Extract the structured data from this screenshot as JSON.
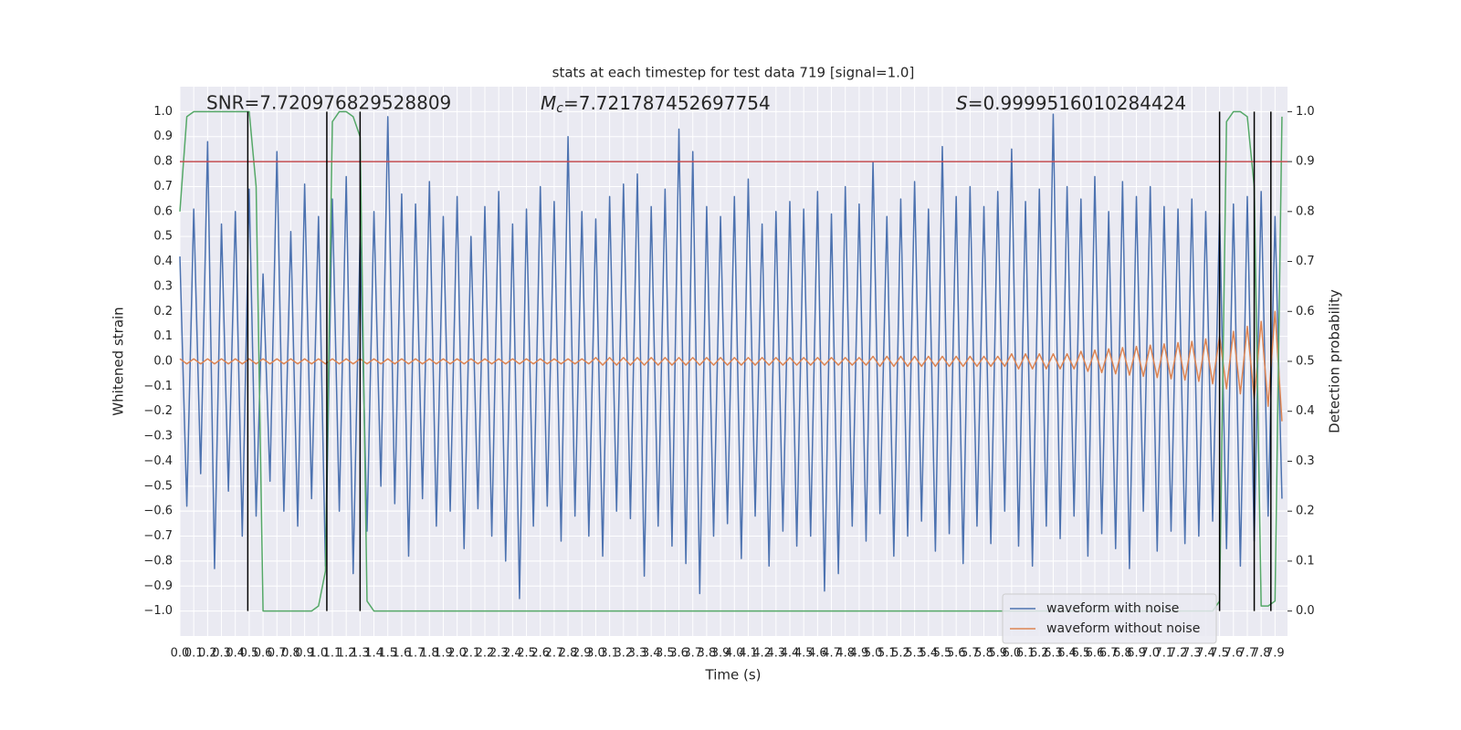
{
  "chart_data": {
    "type": "line",
    "title": "stats at each timestep for test data 719 [signal=1.0]",
    "xlabel": "Time (s)",
    "ylabel": "Whitened strain",
    "y2label": "Detection probability",
    "annotations": [
      "SNR=7.720976829528809",
      {
        "symbol": "M",
        "subscript": "c",
        "text": "=7.721787452697754"
      },
      {
        "symbol": "S",
        "text": "=0.9999516010284424"
      }
    ],
    "xlim": [
      0,
      7.99
    ],
    "ylim": [
      -1.1,
      1.1
    ],
    "y2lim": [
      -0.05,
      1.05
    ],
    "grid": true,
    "legend": "lower right",
    "hline": 0.8,
    "hline_color": "#c44e52",
    "vlines": [
      0.49,
      1.06,
      1.3,
      7.5,
      7.75,
      7.87
    ],
    "vline_span": [
      -1,
      1
    ],
    "vline_color": "#000000",
    "xticks": [
      {
        "value": 0,
        "label": "0.0"
      },
      0.1,
      0.2,
      0.3,
      0.4,
      0.5,
      0.6,
      0.7,
      0.8,
      0.9,
      {
        "value": 1,
        "label": "1.0"
      },
      1.1,
      1.2,
      1.3,
      1.4,
      1.5,
      1.6,
      1.7,
      1.8,
      1.9,
      {
        "value": 2,
        "label": "2.0"
      },
      2.1,
      2.2,
      2.3,
      2.4,
      2.5,
      2.6,
      2.7,
      2.8,
      2.9,
      {
        "value": 3,
        "label": "3.0"
      },
      3.1,
      3.2,
      3.3,
      3.4,
      3.5,
      3.6,
      3.7,
      3.8,
      3.9,
      {
        "value": 4,
        "label": "4.0"
      },
      4.1,
      4.2,
      4.3,
      4.4,
      4.5,
      4.6,
      4.7,
      4.8,
      4.9,
      {
        "value": 5,
        "label": "5.0"
      },
      5.1,
      5.2,
      5.3,
      5.4,
      5.5,
      5.6,
      5.7,
      5.8,
      5.9,
      {
        "value": 6,
        "label": "6.0"
      },
      6.1,
      6.2,
      6.3,
      6.4,
      6.5,
      6.6,
      6.7,
      6.8,
      6.9,
      {
        "value": 7,
        "label": "7.0"
      },
      7.1,
      7.2,
      7.3,
      7.4,
      7.5,
      7.6,
      7.7,
      7.8,
      7.9
    ],
    "yticks": [
      {
        "value": -1,
        "label": "−1.0"
      },
      {
        "value": -0.9,
        "label": "−0.9"
      },
      {
        "value": -0.8,
        "label": "−0.8"
      },
      {
        "value": -0.7,
        "label": "−0.7"
      },
      {
        "value": -0.6,
        "label": "−0.6"
      },
      {
        "value": -0.5,
        "label": "−0.5"
      },
      {
        "value": -0.4,
        "label": "−0.4"
      },
      {
        "value": -0.3,
        "label": "−0.3"
      },
      {
        "value": -0.2,
        "label": "−0.2"
      },
      {
        "value": -0.1,
        "label": "−0.1"
      },
      {
        "value": 0,
        "label": "0.0"
      },
      0.1,
      0.2,
      0.3,
      0.4,
      0.5,
      0.6,
      0.7,
      0.8,
      0.9,
      {
        "value": 1,
        "label": "1.0"
      }
    ],
    "y2ticks": [
      {
        "value": 0,
        "label": "0.0"
      },
      0.1,
      0.2,
      0.3,
      0.4,
      0.5,
      0.6,
      0.7,
      0.8,
      0.9,
      {
        "value": 1,
        "label": "1.0"
      }
    ],
    "x": [
      0,
      0.05,
      0.1,
      0.15,
      0.2,
      0.25,
      0.3,
      0.35,
      0.4,
      0.45,
      0.5,
      0.55,
      0.6,
      0.65,
      0.7,
      0.75,
      0.8,
      0.85,
      0.9,
      0.95,
      1,
      1.05,
      1.1,
      1.15,
      1.2,
      1.25,
      1.3,
      1.35,
      1.4,
      1.45,
      1.5,
      1.55,
      1.6,
      1.65,
      1.7,
      1.75,
      1.8,
      1.85,
      1.9,
      1.95,
      2,
      2.05,
      2.1,
      2.15,
      2.2,
      2.25,
      2.3,
      2.35,
      2.4,
      2.45,
      2.5,
      2.55,
      2.6,
      2.65,
      2.7,
      2.75,
      2.8,
      2.85,
      2.9,
      2.95,
      3,
      3.05,
      3.1,
      3.15,
      3.2,
      3.25,
      3.3,
      3.35,
      3.4,
      3.45,
      3.5,
      3.55,
      3.6,
      3.65,
      3.7,
      3.75,
      3.8,
      3.85,
      3.9,
      3.95,
      4,
      4.05,
      4.1,
      4.15,
      4.2,
      4.25,
      4.3,
      4.35,
      4.4,
      4.45,
      4.5,
      4.55,
      4.6,
      4.65,
      4.7,
      4.75,
      4.8,
      4.85,
      4.9,
      4.95,
      5,
      5.05,
      5.1,
      5.15,
      5.2,
      5.25,
      5.3,
      5.35,
      5.4,
      5.45,
      5.5,
      5.55,
      5.6,
      5.65,
      5.7,
      5.75,
      5.8,
      5.85,
      5.9,
      5.95,
      6,
      6.05,
      6.1,
      6.15,
      6.2,
      6.25,
      6.3,
      6.35,
      6.4,
      6.45,
      6.5,
      6.55,
      6.6,
      6.65,
      6.7,
      6.75,
      6.8,
      6.85,
      6.9,
      6.95,
      7,
      7.05,
      7.1,
      7.15,
      7.2,
      7.25,
      7.3,
      7.35,
      7.4,
      7.45,
      7.5,
      7.55,
      7.6,
      7.65,
      7.7,
      7.75,
      7.8,
      7.85,
      7.9,
      7.95
    ],
    "series": [
      {
        "name": "waveform with noise",
        "color": "#4c72b0",
        "values": [
          0.42,
          -0.58,
          0.61,
          -0.45,
          0.88,
          -0.83,
          0.55,
          -0.52,
          0.6,
          -0.7,
          0.69,
          -0.62,
          0.35,
          -0.48,
          0.84,
          -0.6,
          0.52,
          -0.66,
          0.71,
          -0.55,
          0.58,
          -0.82,
          0.65,
          -0.6,
          0.74,
          -0.85,
          0.5,
          -0.68,
          0.6,
          -0.5,
          0.98,
          -0.57,
          0.67,
          -0.78,
          0.63,
          -0.55,
          0.72,
          -0.66,
          0.58,
          -0.6,
          0.66,
          -0.75,
          0.5,
          -0.59,
          0.62,
          -0.7,
          0.68,
          -0.8,
          0.55,
          -0.95,
          0.61,
          -0.66,
          0.7,
          -0.58,
          0.64,
          -0.72,
          0.9,
          -0.62,
          0.6,
          -0.7,
          0.57,
          -0.78,
          0.66,
          -0.6,
          0.71,
          -0.63,
          0.75,
          -0.86,
          0.62,
          -0.66,
          0.69,
          -0.74,
          0.93,
          -0.81,
          0.84,
          -0.93,
          0.62,
          -0.7,
          0.58,
          -0.65,
          0.66,
          -0.79,
          0.73,
          -0.62,
          0.55,
          -0.82,
          0.6,
          -0.68,
          0.64,
          -0.74,
          0.61,
          -0.7,
          0.68,
          -0.92,
          0.59,
          -0.85,
          0.7,
          -0.66,
          0.63,
          -0.72,
          0.8,
          -0.61,
          0.58,
          -0.78,
          0.65,
          -0.7,
          0.72,
          -0.64,
          0.61,
          -0.76,
          0.86,
          -0.69,
          0.66,
          -0.81,
          0.7,
          -0.66,
          0.62,
          -0.73,
          0.68,
          -0.6,
          0.85,
          -0.74,
          0.64,
          -0.82,
          0.69,
          -0.66,
          0.99,
          -0.71,
          0.7,
          -0.62,
          0.65,
          -0.78,
          0.74,
          -0.69,
          0.6,
          -0.75,
          0.72,
          -0.83,
          0.66,
          -0.6,
          0.7,
          -0.76,
          0.62,
          -0.68,
          0.61,
          -0.73,
          0.65,
          -0.7,
          0.6,
          -0.64,
          0.59,
          -0.75,
          0.63,
          -0.82,
          0.66,
          -0.72,
          0.68,
          -0.62,
          0.58,
          -0.55
        ]
      },
      {
        "name": "waveform without noise",
        "color": "#dd8452",
        "values": [
          0.01,
          -0.01,
          0.01,
          -0.01,
          0.01,
          -0.01,
          0.01,
          -0.01,
          0.01,
          -0.01,
          0.01,
          -0.01,
          0.01,
          -0.01,
          0.01,
          -0.01,
          0.01,
          -0.01,
          0.01,
          -0.01,
          0.01,
          -0.01,
          0.01,
          -0.01,
          0.01,
          -0.01,
          0.01,
          -0.01,
          0.01,
          -0.01,
          0.01,
          -0.01,
          0.01,
          -0.01,
          0.01,
          -0.01,
          0.01,
          -0.01,
          0.01,
          -0.01,
          0.01,
          -0.01,
          0.01,
          -0.01,
          0.01,
          -0.01,
          0.01,
          -0.01,
          0.01,
          -0.01,
          0.01,
          -0.01,
          0.01,
          -0.01,
          0.01,
          -0.01,
          0.01,
          -0.01,
          0.01,
          -0.01,
          0.015,
          -0.015,
          0.015,
          -0.015,
          0.015,
          -0.015,
          0.015,
          -0.015,
          0.015,
          -0.015,
          0.015,
          -0.015,
          0.015,
          -0.015,
          0.015,
          -0.015,
          0.015,
          -0.015,
          0.015,
          -0.015,
          0.015,
          -0.015,
          0.015,
          -0.015,
          0.015,
          -0.015,
          0.015,
          -0.015,
          0.015,
          -0.015,
          0.015,
          -0.015,
          0.015,
          -0.015,
          0.015,
          -0.015,
          0.015,
          -0.015,
          0.015,
          -0.015,
          0.02,
          -0.02,
          0.02,
          -0.02,
          0.02,
          -0.02,
          0.02,
          -0.02,
          0.02,
          -0.02,
          0.02,
          -0.02,
          0.02,
          -0.02,
          0.02,
          -0.02,
          0.02,
          -0.02,
          0.02,
          -0.02,
          0.03,
          -0.03,
          0.03,
          -0.03,
          0.03,
          -0.03,
          0.03,
          -0.03,
          0.03,
          -0.03,
          0.04,
          -0.04,
          0.045,
          -0.045,
          0.05,
          -0.05,
          0.055,
          -0.055,
          0.06,
          -0.06,
          0.065,
          -0.065,
          0.07,
          -0.07,
          0.075,
          -0.075,
          0.08,
          -0.08,
          0.09,
          -0.09,
          0.1,
          -0.11,
          0.12,
          -0.13,
          0.14,
          -0.15,
          0.16,
          -0.18,
          0.2,
          -0.24
        ]
      },
      {
        "axis": "y2",
        "color": "#55a868",
        "values": [
          0.8,
          0.99,
          1,
          1,
          1,
          1,
          1,
          1,
          1,
          1,
          1,
          0.85,
          0,
          0,
          0,
          0,
          0,
          0,
          0,
          0,
          0.01,
          0.08,
          0.98,
          1,
          1,
          0.99,
          0.95,
          0.02,
          0,
          0,
          0,
          0,
          0,
          0,
          0,
          0,
          0,
          0,
          0,
          0,
          0,
          0,
          0,
          0,
          0,
          0,
          0,
          0,
          0,
          0,
          0,
          0,
          0,
          0,
          0,
          0,
          0,
          0,
          0,
          0,
          0,
          0,
          0,
          0,
          0,
          0,
          0,
          0,
          0,
          0,
          0,
          0,
          0,
          0,
          0,
          0,
          0,
          0,
          0,
          0,
          0,
          0,
          0,
          0,
          0,
          0,
          0,
          0,
          0,
          0,
          0,
          0,
          0,
          0,
          0,
          0,
          0,
          0,
          0,
          0,
          0,
          0,
          0,
          0,
          0,
          0,
          0,
          0,
          0,
          0,
          0,
          0,
          0,
          0,
          0,
          0,
          0,
          0,
          0,
          0,
          0,
          0,
          0,
          0,
          0,
          0,
          0,
          0,
          0,
          0,
          0,
          0,
          0,
          0,
          0,
          0,
          0,
          0,
          0,
          0,
          0,
          0,
          0,
          0,
          0,
          0,
          0,
          0,
          0,
          0,
          0.02,
          0.98,
          1,
          1,
          0.99,
          0.85,
          0.01,
          0.01,
          0.02,
          0.99
        ]
      }
    ]
  }
}
